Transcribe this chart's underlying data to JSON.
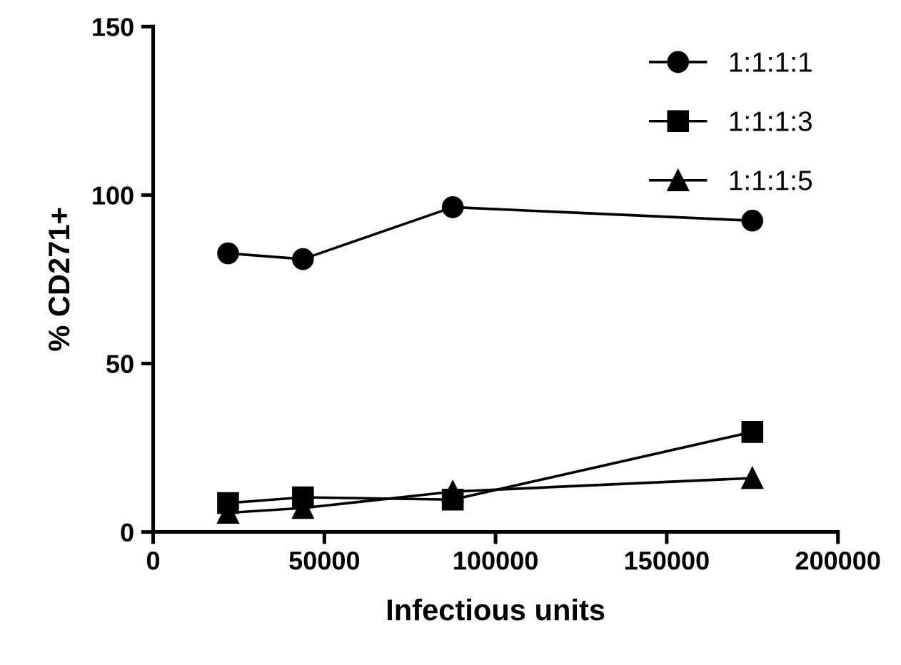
{
  "chart_data": {
    "type": "line",
    "xlabel": "Infectious units",
    "ylabel": "% CD271+",
    "x": [
      21875,
      43750,
      87500,
      175000
    ],
    "series": [
      {
        "name": "1:1:1:1",
        "color": "#000000",
        "marker": "circle",
        "values": [
          82.7,
          81,
          96.4,
          92.4
        ]
      },
      {
        "name": "1:1:1:3",
        "color": "#000000",
        "marker": "square",
        "values": [
          8.6,
          10.3,
          9.6,
          29.7
        ]
      },
      {
        "name": "1:1:1:5",
        "color": "#000000",
        "marker": "triangle",
        "values": [
          5.7,
          7.1,
          12,
          16
        ]
      }
    ],
    "xlim": [
      0,
      200000
    ],
    "xticks": [
      0,
      50000,
      100000,
      150000,
      200000
    ],
    "ylim": [
      0,
      150
    ],
    "yticks": [
      0,
      50,
      100,
      150
    ],
    "grid": false,
    "legend": "top right",
    "line_style": "solid"
  }
}
